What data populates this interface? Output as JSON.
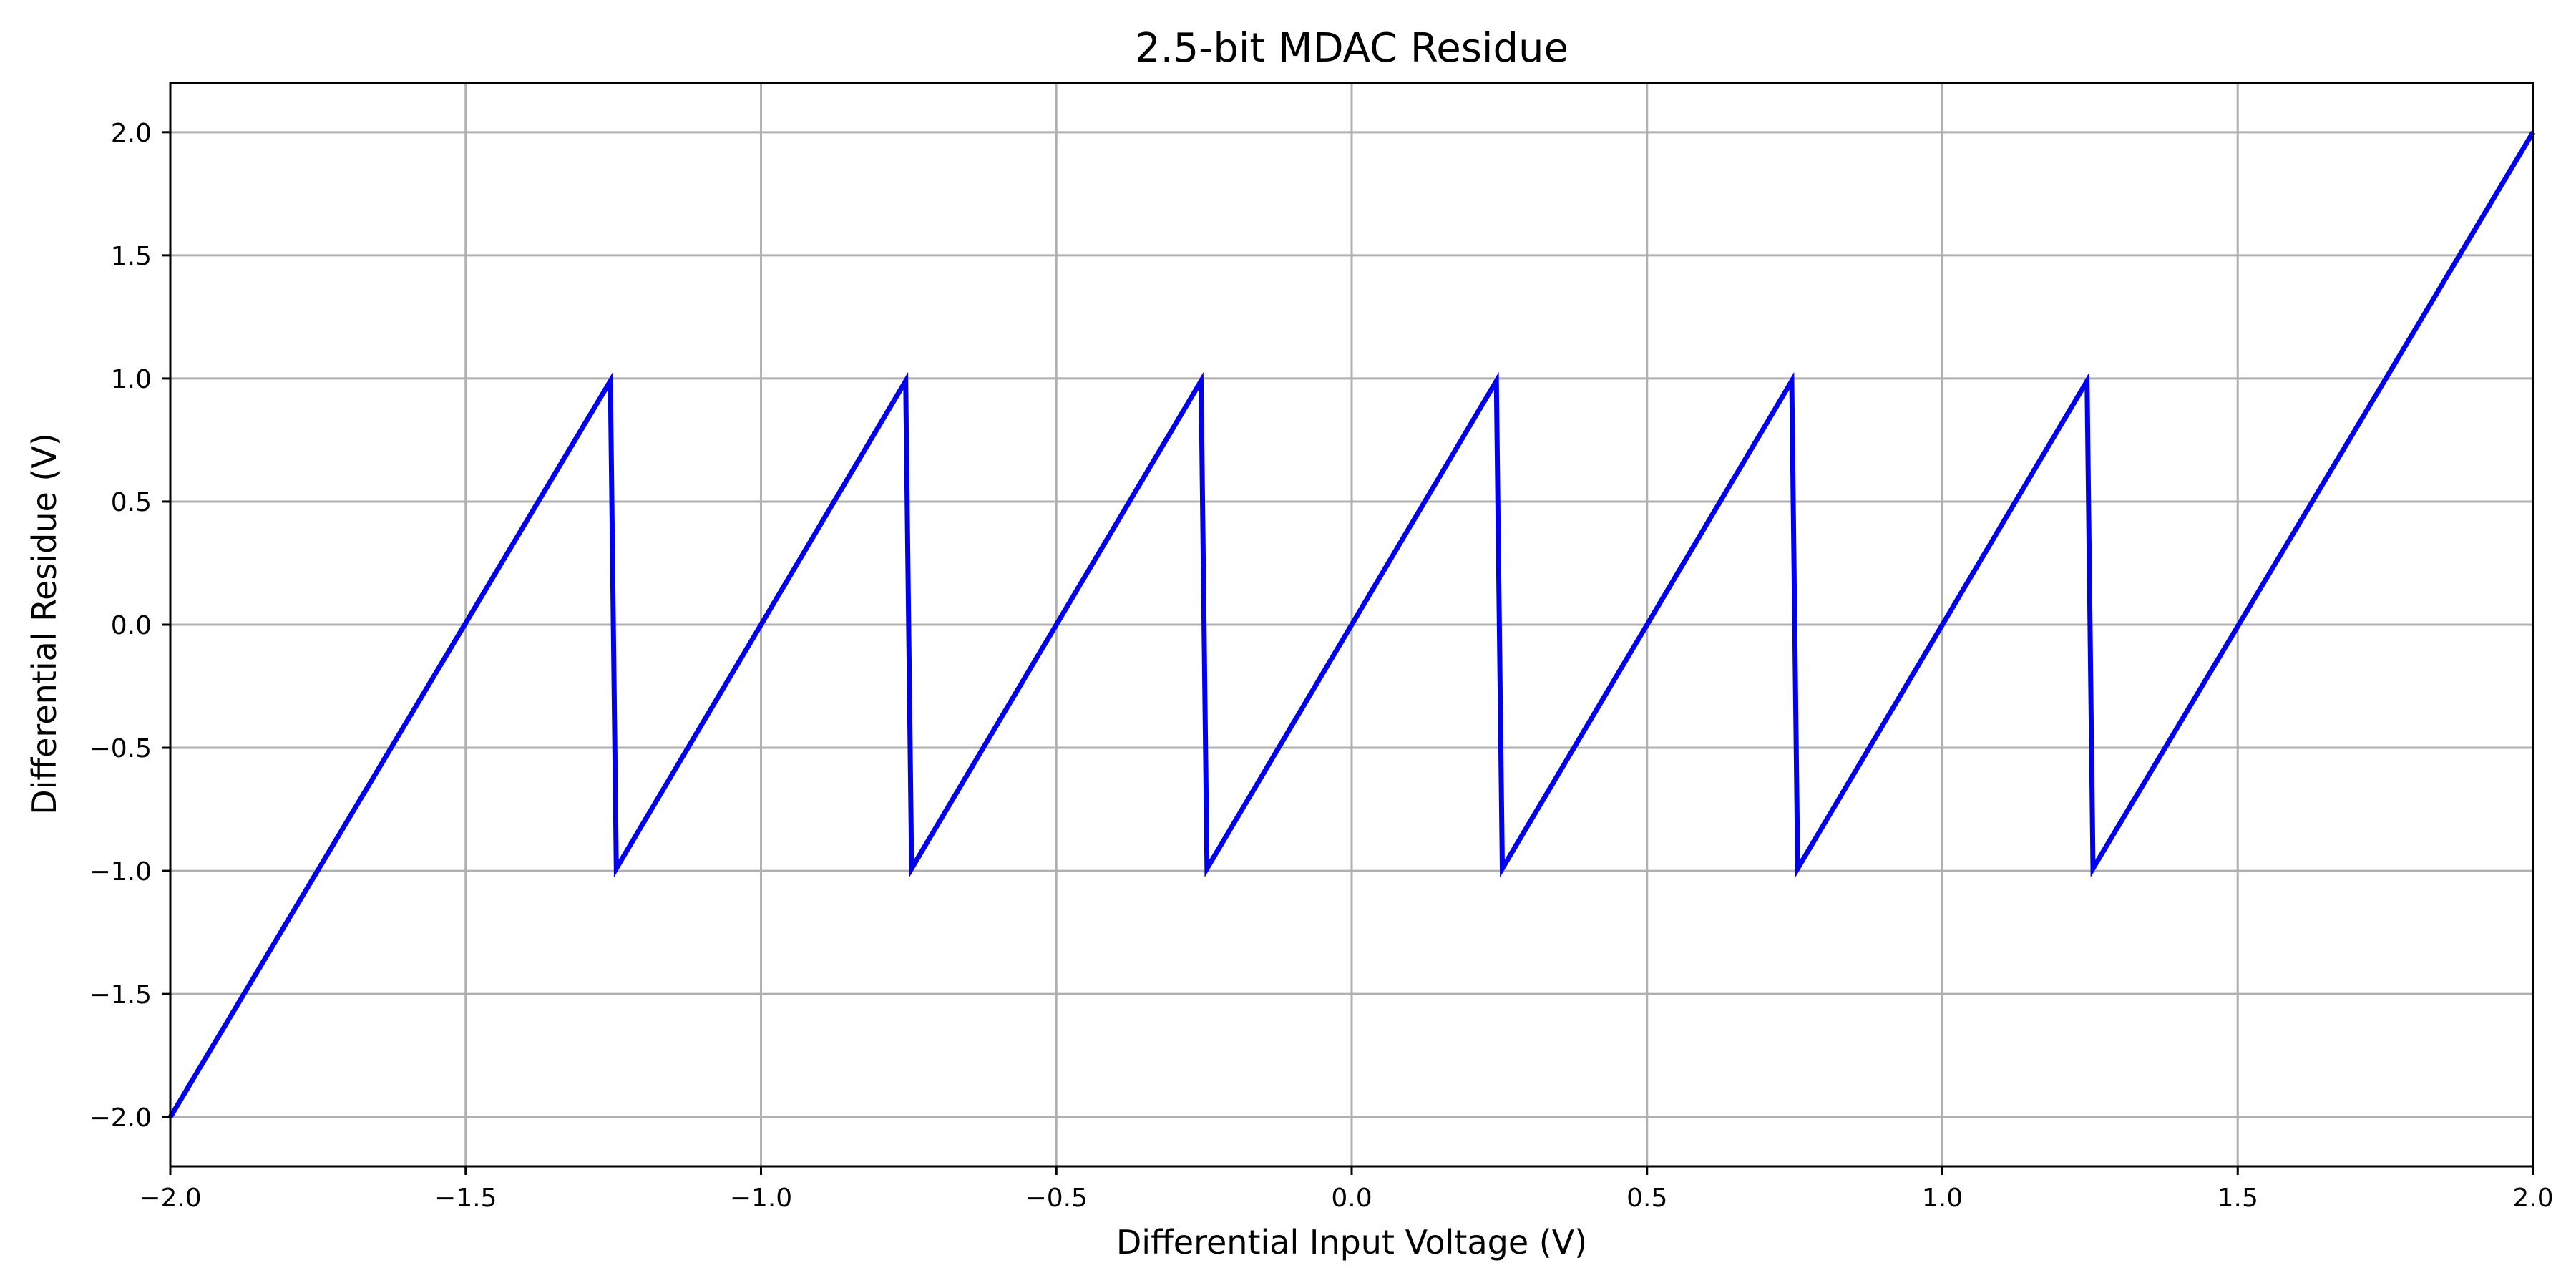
{
  "chart_data": {
    "type": "line",
    "title": "2.5-bit MDAC Residue",
    "xlabel": "Differential Input Voltage (V)",
    "ylabel": "Differential Residue (V)",
    "xlim": [
      -2.0,
      2.0
    ],
    "ylim": [
      -2.2,
      2.2
    ],
    "grid": true,
    "x_ticks": [
      -2.0,
      -1.5,
      -1.0,
      -0.5,
      0.0,
      0.5,
      1.0,
      1.5,
      2.0
    ],
    "x_tick_labels": [
      "−2.0",
      "−1.5",
      "−1.0",
      "−0.5",
      "0.0",
      "0.5",
      "1.0",
      "1.5",
      "2.0"
    ],
    "y_ticks": [
      -2.0,
      -1.5,
      -1.0,
      -0.5,
      0.0,
      0.5,
      1.0,
      1.5,
      2.0
    ],
    "y_tick_labels": [
      "−2.0",
      "−1.5",
      "−1.0",
      "−0.5",
      "0.0",
      "0.5",
      "1.0",
      "1.5",
      "2.0"
    ],
    "series": [
      {
        "color": "#0000ee",
        "x": [
          -2.0,
          -1.255,
          -1.245,
          -0.755,
          -0.745,
          -0.255,
          -0.245,
          0.245,
          0.255,
          0.745,
          0.755,
          1.245,
          1.255,
          2.0
        ],
        "y": [
          -2.0,
          0.99,
          -0.99,
          0.99,
          -0.99,
          0.99,
          -0.99,
          0.99,
          -0.99,
          0.99,
          -0.99,
          0.99,
          -0.99,
          2.0
        ]
      }
    ],
    "colors": {
      "grid": "#b0b0b0",
      "axes": "#000000",
      "line": "#0000ee"
    }
  }
}
